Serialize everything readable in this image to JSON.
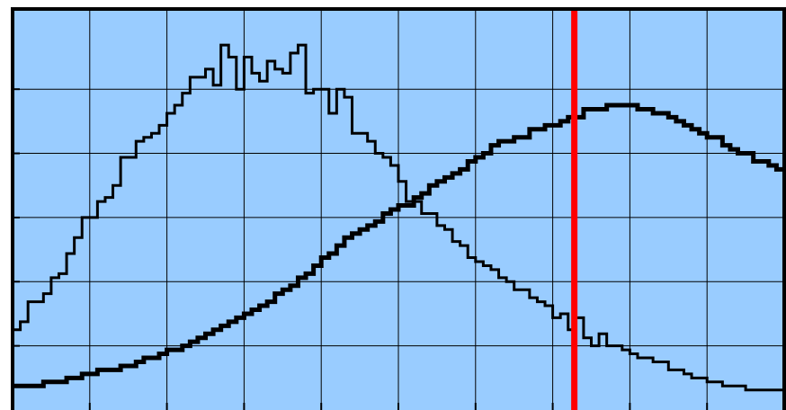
{
  "chart_data": {
    "type": "line",
    "style": "step-histogram",
    "title": "",
    "xlabel": "",
    "ylabel": "",
    "xlim": [
      0,
      100
    ],
    "ylim": [
      0,
      100
    ],
    "grid": true,
    "x_gridlines": [
      10,
      20,
      30,
      40,
      50,
      60,
      70,
      80,
      90
    ],
    "y_gridlines": [
      16,
      32,
      48,
      64,
      80
    ],
    "background_color": "#99ccff",
    "grid_color": "#000000",
    "series": [
      {
        "line": "thin",
        "color": "#000000",
        "x": [
          0.0,
          1.0,
          2.0,
          3.0,
          4.0,
          5.0,
          6.0,
          7.0,
          8.0,
          9.0,
          10.0,
          11.0,
          12.0,
          13.0,
          14.0,
          15.0,
          16.0,
          17.0,
          18.0,
          19.0,
          20.0,
          21.0,
          22.0,
          23.0,
          24.0,
          25.0,
          26.0,
          27.0,
          28.0,
          29.0,
          30.0,
          31.0,
          32.0,
          33.0,
          34.0,
          35.0,
          36.0,
          37.0,
          38.0,
          39.0,
          40.0,
          41.0,
          42.0,
          43.0,
          44.0,
          45.0,
          46.0,
          47.0,
          48.0,
          49.0,
          50.0,
          51.0,
          52.0,
          53.0,
          54.0,
          55.0,
          56.0,
          57.0,
          58.0,
          59.0,
          60.0,
          61.0,
          62.0,
          63.0,
          64.0,
          65.0,
          66.0,
          67.0,
          68.0,
          69.0,
          70.0,
          71.0,
          72.0,
          73.0,
          74.0,
          75.0,
          76.0,
          77.0,
          78.0,
          79.0,
          80.0,
          81.0,
          82.0,
          83.0,
          84.0,
          85.0,
          86.0,
          87.0,
          88.0,
          89.0,
          90.0,
          91.0,
          92.0,
          93.0,
          94.0,
          95.0,
          96.0,
          97.0,
          98.0,
          99.0
        ],
        "y": [
          20,
          22,
          27,
          27,
          29,
          33,
          34,
          39,
          43,
          48,
          48,
          52,
          53,
          56,
          63,
          63,
          67,
          68,
          69,
          71,
          74,
          76,
          79,
          83,
          83,
          85,
          81,
          91,
          88,
          80,
          88,
          84,
          82,
          87,
          85,
          84,
          89,
          91,
          79,
          80,
          80,
          74,
          80,
          78,
          69,
          69,
          67,
          64,
          63,
          61,
          57,
          52,
          52,
          49,
          49,
          46,
          45,
          42,
          41,
          38,
          37,
          36,
          35,
          33,
          32,
          30,
          30,
          28,
          27,
          26,
          23,
          24,
          20,
          23,
          18,
          16,
          19,
          16,
          16,
          15,
          14,
          13,
          13,
          12,
          12,
          10,
          10,
          9,
          8,
          8,
          7,
          7,
          6,
          6,
          6,
          5,
          5,
          5,
          5,
          5
        ]
      },
      {
        "line": "thick",
        "color": "#000000",
        "x": [
          0.0,
          1.0,
          2.0,
          3.0,
          4.0,
          5.0,
          6.0,
          7.0,
          8.0,
          9.0,
          10.0,
          11.0,
          12.0,
          13.0,
          14.0,
          15.0,
          16.0,
          17.0,
          18.0,
          19.0,
          20.0,
          21.0,
          22.0,
          23.0,
          24.0,
          25.0,
          26.0,
          27.0,
          28.0,
          29.0,
          30.0,
          31.0,
          32.0,
          33.0,
          34.0,
          35.0,
          36.0,
          37.0,
          38.0,
          39.0,
          40.0,
          41.0,
          42.0,
          43.0,
          44.0,
          45.0,
          46.0,
          47.0,
          48.0,
          49.0,
          50.0,
          51.0,
          52.0,
          53.0,
          54.0,
          55.0,
          56.0,
          57.0,
          58.0,
          59.0,
          60.0,
          61.0,
          62.0,
          63.0,
          64.0,
          65.0,
          66.0,
          67.0,
          68.0,
          69.0,
          70.0,
          71.0,
          72.0,
          73.0,
          74.0,
          75.0,
          76.0,
          77.0,
          78.0,
          79.0,
          80.0,
          81.0,
          82.0,
          83.0,
          84.0,
          85.0,
          86.0,
          87.0,
          88.0,
          89.0,
          90.0,
          91.0,
          92.0,
          93.0,
          94.0,
          95.0,
          96.0,
          97.0,
          98.0,
          99.0
        ],
        "y": [
          6,
          6,
          6,
          6,
          7,
          7,
          7,
          8,
          8,
          9,
          9,
          10,
          10,
          10,
          11,
          11,
          12,
          13,
          13,
          14,
          15,
          15,
          16,
          17,
          18,
          19,
          20,
          21,
          22,
          23,
          24,
          25,
          26,
          27,
          29,
          30,
          31,
          33,
          34,
          36,
          38,
          39,
          41,
          43,
          44,
          45,
          46,
          47,
          49,
          50,
          51,
          51,
          53,
          54,
          56,
          57,
          58,
          59,
          60,
          62,
          63,
          64,
          66,
          67,
          67,
          68,
          68,
          70,
          70,
          71,
          71,
          72,
          73,
          73,
          75,
          75,
          75,
          76,
          76,
          76,
          76,
          75,
          75,
          74,
          74,
          73,
          72,
          71,
          70,
          69,
          68,
          68,
          66,
          65,
          64,
          64,
          62,
          62,
          61,
          60
        ]
      }
    ],
    "reference_line": {
      "x": 72.8,
      "color": "#ff0000"
    }
  }
}
